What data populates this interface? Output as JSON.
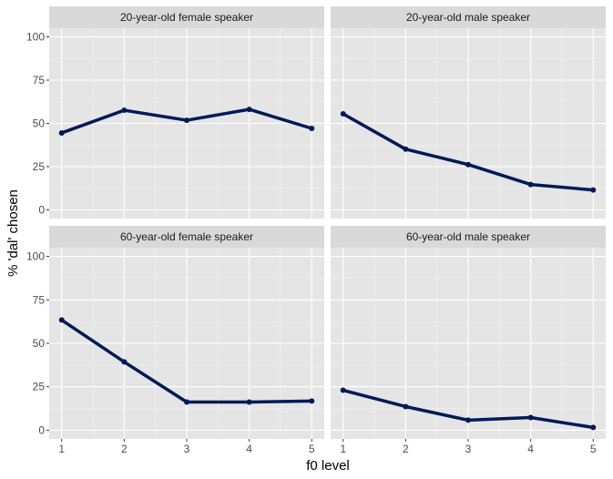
{
  "chart_data": {
    "type": "line",
    "xlabel": "f0 level",
    "ylabel": "% 'dal' chosen",
    "x": [
      1,
      2,
      3,
      4,
      5
    ],
    "xlim": [
      0.8,
      5.2
    ],
    "ylim": [
      -5,
      105
    ],
    "yticks": [
      0,
      25,
      50,
      75,
      100
    ],
    "grid": true,
    "line_color": "#001a57",
    "panel_background": "#e5e5e5",
    "strip_background": "#d9d9d9",
    "facets": [
      {
        "title": "20-year-old female speaker",
        "values": [
          44.5,
          57.6,
          51.8,
          58.1,
          47.1
        ]
      },
      {
        "title": "20-year-old male speaker",
        "values": [
          55.5,
          35.1,
          26.2,
          14.7,
          11.5
        ]
      },
      {
        "title": "60-year-old female speaker",
        "values": [
          63.4,
          39.3,
          16.2,
          16.2,
          16.8
        ]
      },
      {
        "title": "60-year-old male speaker",
        "values": [
          23.0,
          13.6,
          5.8,
          7.3,
          1.6
        ]
      }
    ]
  }
}
